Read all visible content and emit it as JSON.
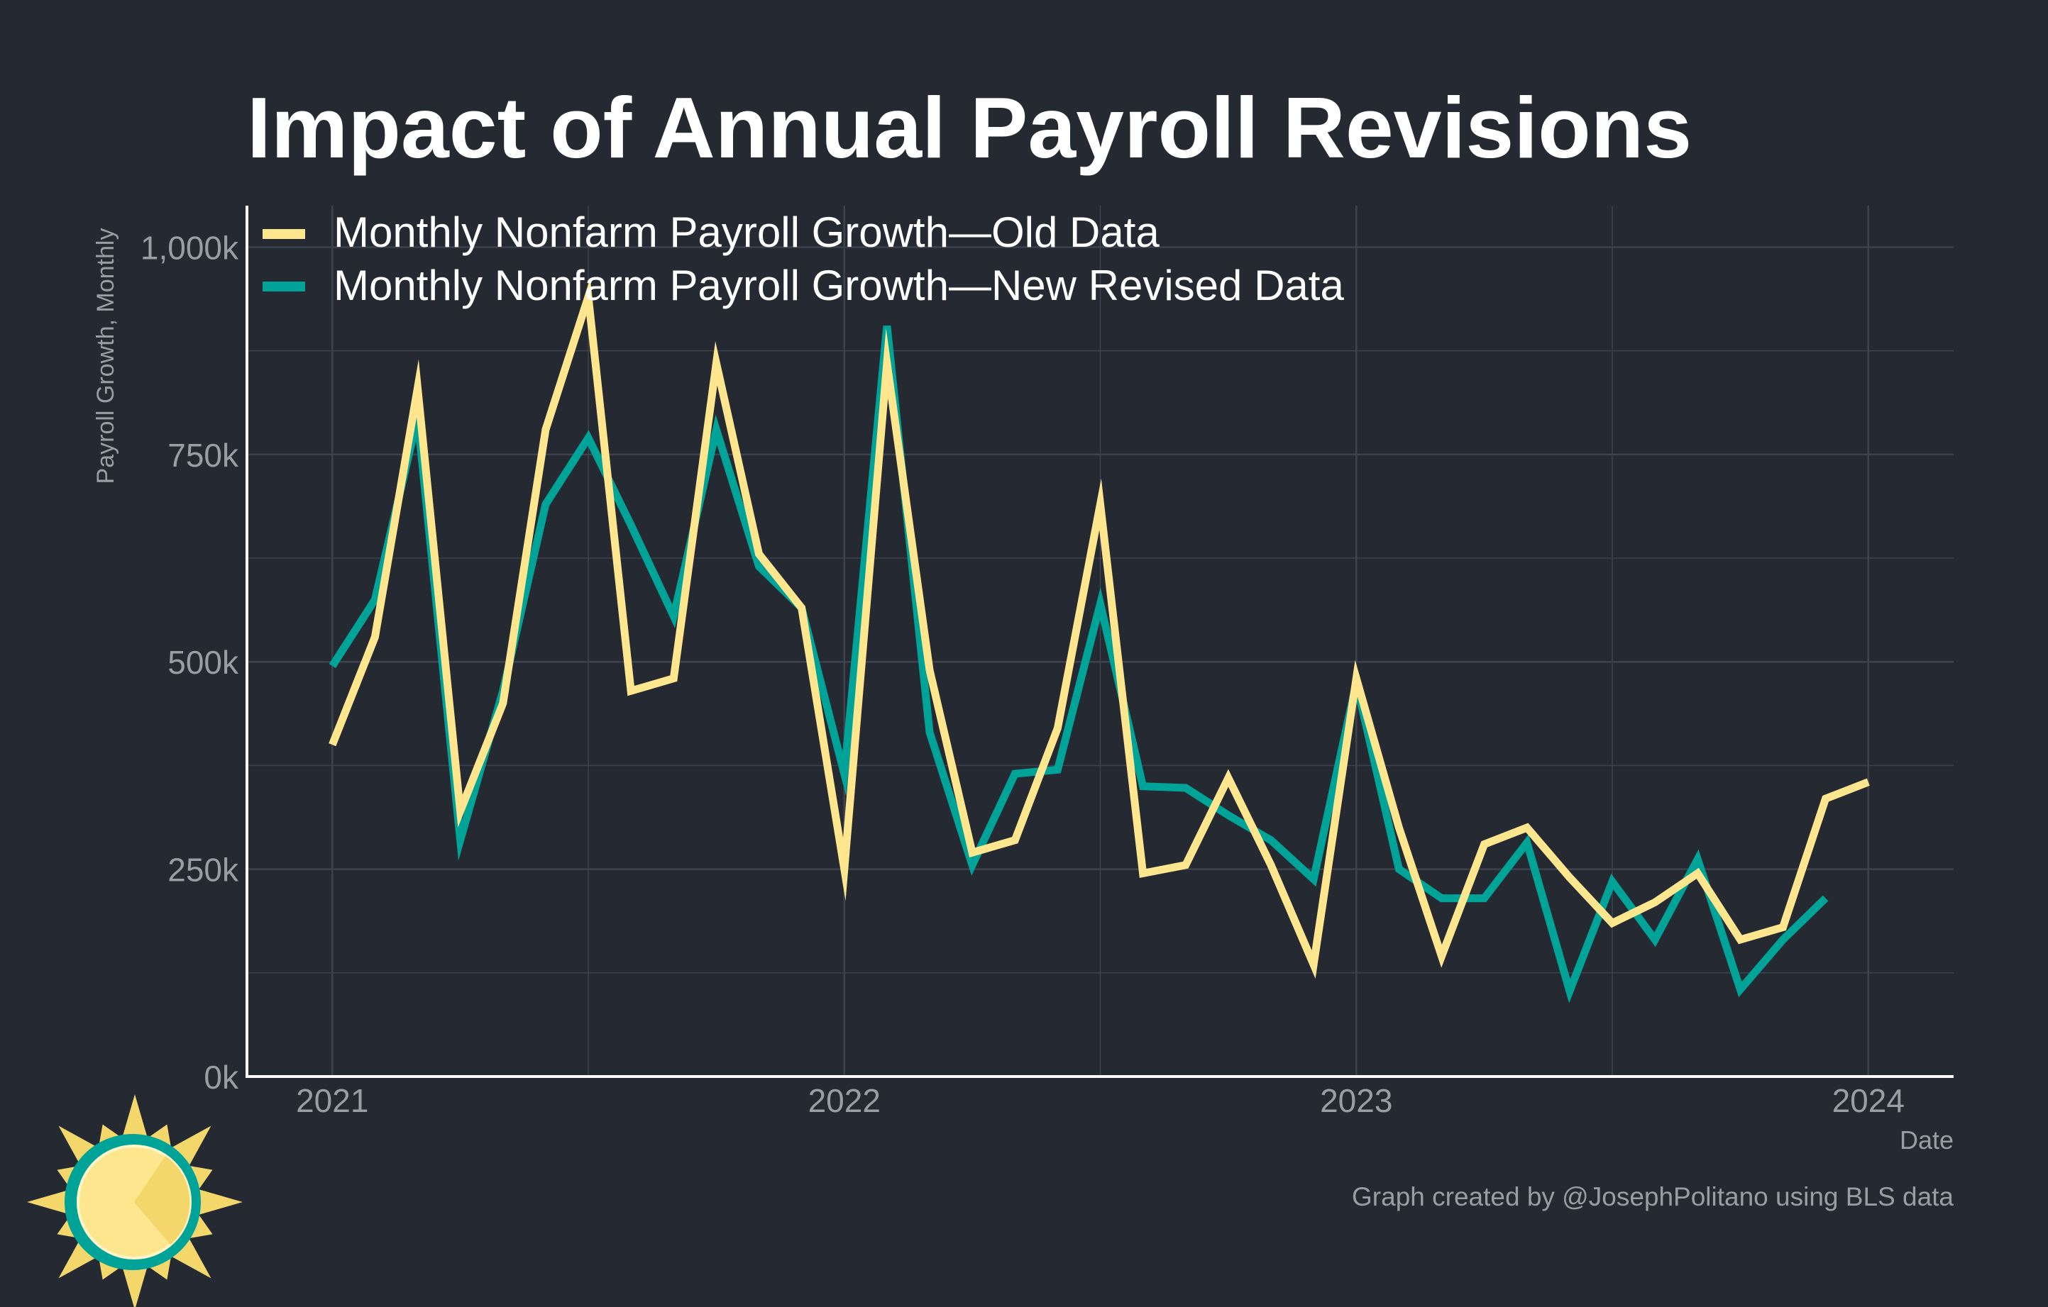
{
  "colors": {
    "background": "#252932",
    "grid": "#3d424c",
    "axis": "#ffffff",
    "title": "#ffffff",
    "muted_text": "#9a9da3",
    "old_series": "#fde68e",
    "new_series": "#00a397"
  },
  "logo": {
    "icon": "sun-logo-icon"
  },
  "chart_data": {
    "type": "line",
    "title": "Impact of Annual Payroll Revisions",
    "xlabel": "Date",
    "ylabel": "Payroll Growth, Monthly",
    "caption": "Graph created by @JosephPolitano using BLS data",
    "x_ticks": [
      "2021",
      "2022",
      "2023",
      "2024"
    ],
    "y_ticks": [
      "0k",
      "250k",
      "500k",
      "750k",
      "1,000k"
    ],
    "y_tick_values": [
      0,
      250,
      500,
      750,
      1000
    ],
    "ylim": [
      0,
      1050
    ],
    "xlim": [
      "2020-11",
      "2024-03"
    ],
    "grid": true,
    "legend_position": "top-left",
    "series": [
      {
        "name": "Monthly Nonfarm Payroll Growth—Old Data",
        "key": "old",
        "start": "2021-01",
        "values": [
          400,
          530,
          830,
          320,
          450,
          780,
          940,
          465,
          480,
          860,
          630,
          565,
          250,
          860,
          490,
          270,
          285,
          420,
          690,
          245,
          255,
          360,
          255,
          135,
          480,
          300,
          145,
          280,
          300,
          240,
          185,
          210,
          245,
          165,
          180,
          335,
          355
        ]
      },
      {
        "name": "Monthly Nonfarm Payroll Growth—New Revised Data",
        "key": "new",
        "start": "2021-01",
        "values": [
          495,
          575,
          795,
          285,
          465,
          690,
          770,
          665,
          555,
          780,
          615,
          565,
          365,
          905,
          415,
          255,
          365,
          370,
          570,
          350,
          348,
          315,
          285,
          238,
          475,
          250,
          215,
          215,
          282,
          103,
          235,
          165,
          262,
          105,
          165,
          215
        ]
      }
    ]
  }
}
